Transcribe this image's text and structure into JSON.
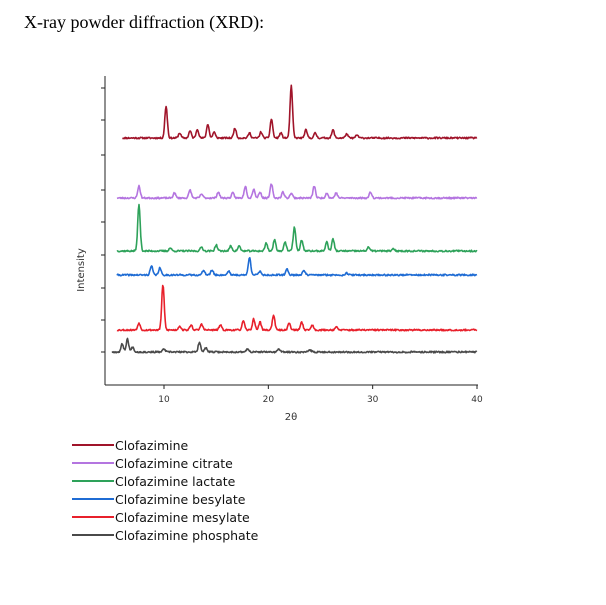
{
  "heading": "X-ray powder diffraction (XRD):",
  "chart_data": {
    "type": "line",
    "title": "",
    "xlabel": "2θ",
    "ylabel": "Intensity",
    "xlim": [
      5,
      40
    ],
    "xticks": [
      10,
      20,
      30,
      40
    ],
    "yticks": "unlabeled",
    "grid": false,
    "legend_position": "below",
    "series": [
      {
        "name": "Clofazimine",
        "color": "#a0142a",
        "baseline": 138,
        "noise_seed": 11,
        "peaks": [
          {
            "x": 10.2,
            "h": 32
          },
          {
            "x": 11.5,
            "h": 5
          },
          {
            "x": 12.5,
            "h": 7
          },
          {
            "x": 13.2,
            "h": 9
          },
          {
            "x": 14.2,
            "h": 14
          },
          {
            "x": 14.8,
            "h": 6
          },
          {
            "x": 16.8,
            "h": 10
          },
          {
            "x": 18.2,
            "h": 5
          },
          {
            "x": 19.3,
            "h": 6
          },
          {
            "x": 20.3,
            "h": 19
          },
          {
            "x": 21.2,
            "h": 5
          },
          {
            "x": 22.2,
            "h": 52
          },
          {
            "x": 23.6,
            "h": 8
          },
          {
            "x": 24.5,
            "h": 5
          },
          {
            "x": 26.2,
            "h": 8
          },
          {
            "x": 27.5,
            "h": 4
          },
          {
            "x": 28.5,
            "h": 3
          }
        ]
      },
      {
        "name": "Clofazimine citrate",
        "color": "#b475e0",
        "baseline": 198,
        "noise_seed": 23,
        "peaks": [
          {
            "x": 7.6,
            "h": 12
          },
          {
            "x": 11.0,
            "h": 5
          },
          {
            "x": 12.5,
            "h": 8
          },
          {
            "x": 13.6,
            "h": 4
          },
          {
            "x": 15.2,
            "h": 6
          },
          {
            "x": 16.6,
            "h": 5
          },
          {
            "x": 17.8,
            "h": 12
          },
          {
            "x": 18.6,
            "h": 9
          },
          {
            "x": 19.2,
            "h": 6
          },
          {
            "x": 20.3,
            "h": 14
          },
          {
            "x": 21.4,
            "h": 6
          },
          {
            "x": 22.2,
            "h": 5
          },
          {
            "x": 24.4,
            "h": 12
          },
          {
            "x": 25.6,
            "h": 5
          },
          {
            "x": 26.5,
            "h": 5
          },
          {
            "x": 29.8,
            "h": 6
          }
        ]
      },
      {
        "name": "Clofazimine lactate",
        "color": "#2ea25a",
        "baseline": 251,
        "noise_seed": 37,
        "peaks": [
          {
            "x": 7.6,
            "h": 46
          },
          {
            "x": 10.6,
            "h": 3
          },
          {
            "x": 13.6,
            "h": 4
          },
          {
            "x": 15.0,
            "h": 6
          },
          {
            "x": 16.4,
            "h": 5
          },
          {
            "x": 17.2,
            "h": 5
          },
          {
            "x": 19.8,
            "h": 8
          },
          {
            "x": 20.6,
            "h": 11
          },
          {
            "x": 21.6,
            "h": 9
          },
          {
            "x": 22.5,
            "h": 24
          },
          {
            "x": 23.2,
            "h": 11
          },
          {
            "x": 25.6,
            "h": 9
          },
          {
            "x": 26.2,
            "h": 12
          },
          {
            "x": 29.6,
            "h": 4
          },
          {
            "x": 32.0,
            "h": 2
          }
        ]
      },
      {
        "name": "Clofazimine besylate",
        "color": "#1f6cd4",
        "baseline": 275,
        "noise_seed": 41,
        "peaks": [
          {
            "x": 8.8,
            "h": 9
          },
          {
            "x": 9.6,
            "h": 7
          },
          {
            "x": 13.8,
            "h": 5
          },
          {
            "x": 14.6,
            "h": 5
          },
          {
            "x": 16.2,
            "h": 4
          },
          {
            "x": 18.2,
            "h": 18
          },
          {
            "x": 19.2,
            "h": 4
          },
          {
            "x": 21.8,
            "h": 6
          },
          {
            "x": 23.4,
            "h": 5
          },
          {
            "x": 27.5,
            "h": 2
          }
        ]
      },
      {
        "name": "Clofazimine mesylate",
        "color": "#e8202b",
        "baseline": 330,
        "noise_seed": 53,
        "peaks": [
          {
            "x": 7.6,
            "h": 7
          },
          {
            "x": 9.9,
            "h": 45
          },
          {
            "x": 11.5,
            "h": 4
          },
          {
            "x": 12.6,
            "h": 5
          },
          {
            "x": 13.6,
            "h": 6
          },
          {
            "x": 15.4,
            "h": 5
          },
          {
            "x": 17.6,
            "h": 9
          },
          {
            "x": 18.6,
            "h": 11
          },
          {
            "x": 19.2,
            "h": 8
          },
          {
            "x": 20.5,
            "h": 15
          },
          {
            "x": 22.0,
            "h": 7
          },
          {
            "x": 23.2,
            "h": 8
          },
          {
            "x": 24.2,
            "h": 5
          },
          {
            "x": 26.5,
            "h": 3
          }
        ]
      },
      {
        "name": "Clofazimine phosphate",
        "color": "#4a4a4a",
        "baseline": 352,
        "noise_seed": 67,
        "peaks": [
          {
            "x": 6.0,
            "h": 8
          },
          {
            "x": 6.5,
            "h": 13
          },
          {
            "x": 7.0,
            "h": 5
          },
          {
            "x": 10.0,
            "h": 3
          },
          {
            "x": 13.4,
            "h": 10
          },
          {
            "x": 14.0,
            "h": 4
          },
          {
            "x": 18.0,
            "h": 3
          },
          {
            "x": 21.0,
            "h": 3
          },
          {
            "x": 24.0,
            "h": 2
          }
        ]
      }
    ]
  }
}
